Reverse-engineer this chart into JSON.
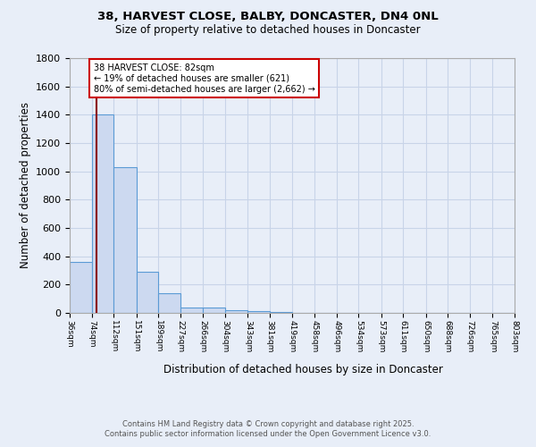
{
  "title_line1": "38, HARVEST CLOSE, BALBY, DONCASTER, DN4 0NL",
  "title_line2": "Size of property relative to detached houses in Doncaster",
  "xlabel": "Distribution of detached houses by size in Doncaster",
  "ylabel": "Number of detached properties",
  "bin_edges": [
    36,
    74,
    112,
    151,
    189,
    227,
    266,
    304,
    343,
    381,
    419,
    458,
    496,
    534,
    573,
    611,
    650,
    688,
    726,
    765,
    803
  ],
  "bar_heights": [
    360,
    1400,
    1030,
    290,
    140,
    40,
    35,
    20,
    15,
    5,
    3,
    2,
    1,
    1,
    0,
    0,
    0,
    0,
    0,
    0
  ],
  "bar_color": "#ccd9f0",
  "bar_edge_color": "#5b9bd5",
  "property_size": 82,
  "property_line_color": "#8b0000",
  "annotation_text": "38 HARVEST CLOSE: 82sqm\n← 19% of detached houses are smaller (621)\n80% of semi-detached houses are larger (2,662) →",
  "annotation_box_color": "white",
  "annotation_box_edge_color": "#cc0000",
  "ylim": [
    0,
    1800
  ],
  "yticks": [
    0,
    200,
    400,
    600,
    800,
    1000,
    1200,
    1400,
    1600,
    1800
  ],
  "background_color": "#e8eef8",
  "grid_color": "#c8d4e8",
  "footer_line1": "Contains HM Land Registry data © Crown copyright and database right 2025.",
  "footer_line2": "Contains public sector information licensed under the Open Government Licence v3.0."
}
